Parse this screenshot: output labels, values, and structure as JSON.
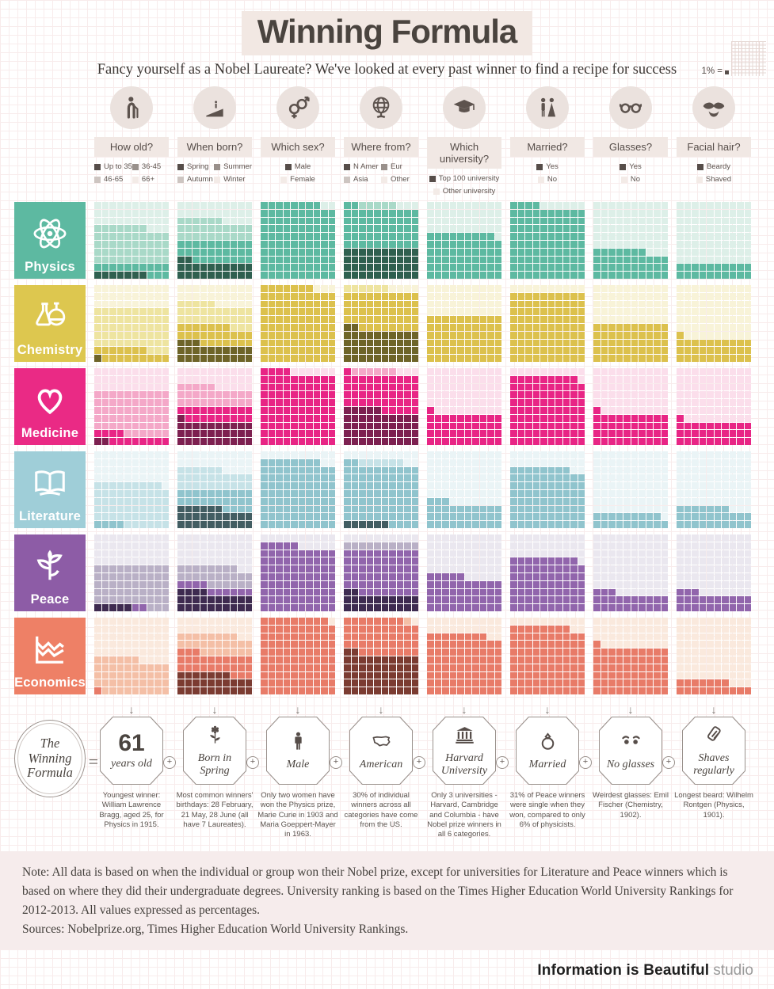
{
  "header": {
    "title": "Winning Formula",
    "subtitle": "Fancy yourself as a Nobel Laureate? We've looked at every past winner to find a recipe for success",
    "unit_legend": "1% ="
  },
  "theme": {
    "legend_shades": [
      "#564d49",
      "#99908b",
      "#cdc5c1",
      "#f3ebe7"
    ],
    "header_icon_color": "#5d534e",
    "title_highlight": "#f2e8e3"
  },
  "columns": [
    {
      "key": "age",
      "label": "How old?",
      "icon": "old-man-icon",
      "categories": [
        "Up to 35",
        "36-45",
        "46-65",
        "66+"
      ]
    },
    {
      "key": "born",
      "label": "When born?",
      "icon": "birthday-cake-icon",
      "categories": [
        "Spring",
        "Summer",
        "Autumn",
        "Winter"
      ]
    },
    {
      "key": "sex",
      "label": "Which sex?",
      "icon": "gender-icon",
      "categories": [
        "Male",
        "Female"
      ]
    },
    {
      "key": "from",
      "label": "Where from?",
      "icon": "globe-icon",
      "categories": [
        "N Amer",
        "Eur",
        "Asia",
        "Other"
      ]
    },
    {
      "key": "uni",
      "label": "Which university?",
      "icon": "mortarboard-icon",
      "categories": [
        "Top 100 university",
        "Other university"
      ]
    },
    {
      "key": "married",
      "label": "Married?",
      "icon": "bride-groom-icon",
      "categories": [
        "Yes",
        "No"
      ]
    },
    {
      "key": "glasses",
      "label": "Glasses?",
      "icon": "glasses-icon",
      "categories": [
        "Yes",
        "No"
      ]
    },
    {
      "key": "facial",
      "label": "Facial hair?",
      "icon": "moustache-icon",
      "categories": [
        "Beardy",
        "Shaved"
      ]
    }
  ],
  "prizes": [
    {
      "name": "Physics",
      "icon": "atom-icon",
      "color": "#5db9a1",
      "shades": [
        "#2f5f4f",
        "#5db9a1",
        "#a9d9c8",
        "#ddefe8"
      ]
    },
    {
      "name": "Chemistry",
      "icon": "flask-icon",
      "color": "#ddc74f",
      "shades": [
        "#6e6428",
        "#dcc14d",
        "#eee4a0",
        "#f8f3d8"
      ]
    },
    {
      "name": "Medicine",
      "icon": "heart-icon",
      "color": "#ea2a85",
      "shades": [
        "#7d2050",
        "#e82585",
        "#f4a8c8",
        "#fbdeeb"
      ]
    },
    {
      "name": "Literature",
      "icon": "open-book-icon",
      "color": "#9fced8",
      "shades": [
        "#425d62",
        "#90c4cd",
        "#c6e2e7",
        "#eaf4f6"
      ]
    },
    {
      "name": "Peace",
      "icon": "plant-icon",
      "color": "#8d5ca6",
      "shades": [
        "#3e2b50",
        "#9165ac",
        "#b9b0c6",
        "#eae7ef"
      ]
    },
    {
      "name": "Economics",
      "icon": "line-chart-icon",
      "color": "#ee8066",
      "shades": [
        "#7b3b31",
        "#e87b68",
        "#f4bfa6",
        "#fae9dd"
      ]
    }
  ],
  "chart_data": {
    "type": "waffle-grid",
    "unit": "1 square = 1%",
    "fill_order": "bottom-left upward, left to right",
    "rows": [
      "Physics",
      "Chemistry",
      "Medicine",
      "Literature",
      "Peace",
      "Economics"
    ],
    "columns": [
      "How old?",
      "When born?",
      "Which sex?",
      "Where from?",
      "Which university?",
      "Married?",
      "Glasses?",
      "Facial hair?"
    ],
    "values": {
      "Physics": {
        "age": [
          7,
          13,
          47,
          33
        ],
        "born": [
          22,
          28,
          26,
          24
        ],
        "sex": [
          98,
          2
        ],
        "from": [
          40,
          52,
          5,
          3
        ],
        "uni": [
          59,
          41
        ],
        "married": [
          94,
          6
        ],
        "glasses": [
          37,
          63
        ],
        "facial": [
          20,
          80
        ]
      },
      "Chemistry": {
        "age": [
          1,
          16,
          53,
          30
        ],
        "born": [
          23,
          24,
          28,
          25
        ],
        "sex": [
          97,
          3
        ],
        "from": [
          42,
          48,
          6,
          4
        ],
        "uni": [
          60,
          40
        ],
        "married": [
          90,
          10
        ],
        "glasses": [
          50,
          50
        ],
        "facial": [
          31,
          69
        ]
      },
      "Medicine": {
        "age": [
          2,
          12,
          56,
          30
        ],
        "born": [
          31,
          19,
          25,
          25
        ],
        "sex": [
          94,
          6
        ],
        "from": [
          45,
          46,
          6,
          3
        ],
        "uni": [
          41,
          59
        ],
        "married": [
          89,
          11
        ],
        "glasses": [
          41,
          59
        ],
        "facial": [
          31,
          69
        ]
      },
      "Literature": {
        "age": [
          0,
          4,
          55,
          41
        ],
        "born": [
          26,
          24,
          26,
          24
        ],
        "sex": [
          88,
          12
        ],
        "from": [
          6,
          76,
          6,
          12
        ],
        "uni": [
          33,
          67
        ],
        "married": [
          78,
          22
        ],
        "glasses": [
          19,
          81
        ],
        "facial": [
          27,
          73
        ]
      },
      "Peace": {
        "age": [
          5,
          2,
          53,
          40
        ],
        "born": [
          24,
          10,
          24,
          42
        ],
        "sex": [
          85,
          15
        ],
        "from": [
          22,
          58,
          10,
          10
        ],
        "uni": [
          45,
          55
        ],
        "married": [
          69,
          31
        ],
        "glasses": [
          23,
          77
        ],
        "facial": [
          23,
          77
        ]
      },
      "Economics": {
        "age": [
          0,
          1,
          45,
          54
        ],
        "born": [
          27,
          26,
          25,
          22
        ],
        "sex": [
          99,
          1
        ],
        "from": [
          52,
          46,
          1,
          1
        ],
        "uni": [
          78,
          22
        ],
        "married": [
          88,
          12
        ],
        "glasses": [
          61,
          39
        ],
        "facial": [
          17,
          83
        ]
      }
    }
  },
  "formula": {
    "circle_label": "The Winning Formula",
    "equals": "=",
    "plus": "+",
    "down_arrow": "↓",
    "items": [
      {
        "icon": "",
        "big": "61",
        "label": "years old",
        "note": "Youngest winner: William Lawrence Bragg, aged 25, for Physics in 1915."
      },
      {
        "icon": "flower-icon",
        "big": "",
        "label": "Born in Spring",
        "note": "Most common winners' birthdays: 28 February, 21 May, 28 June (all have 7 Laureates)."
      },
      {
        "icon": "male-figure-icon",
        "big": "",
        "label": "Male",
        "note": "Only two women have won the Physics prize, Marie Curie in 1903 and Maria Goeppert-Mayer in 1963."
      },
      {
        "icon": "usa-map-icon",
        "big": "",
        "label": "American",
        "note": "30% of individual winners across all categories have come from the US."
      },
      {
        "icon": "university-building-icon",
        "big": "",
        "label": "Harvard University",
        "note": "Only 3 universities - Harvard, Cambridge and Columbia - have Nobel prize winners in all 6 categories."
      },
      {
        "icon": "ring-icon",
        "big": "",
        "label": "Married",
        "note": "31% of Peace winners were single when they won, compared to only 6% of physicists."
      },
      {
        "icon": "eyes-icon",
        "big": "",
        "label": "No glasses",
        "note": "Weirdest glasses: Emil Fischer (Chemistry, 1902)."
      },
      {
        "icon": "razor-icon",
        "big": "",
        "label": "Shaves regularly",
        "note": "Longest beard: Wilhelm Rontgen (Physics, 1901)."
      }
    ]
  },
  "footer": {
    "note": "Note: All data is based on when the individual or group won their Nobel prize, except for universities for Literature and Peace winners which is based on where they did their undergraduate degrees. University ranking is based on the Times Higher Education World University Rankings for 2012-2013. All values expressed as percentages.",
    "sources": "Sources: Nobelprize.org, Times Higher Education World University Rankings.",
    "brand": "Information is Beautiful",
    "brand_suffix": "studio"
  }
}
